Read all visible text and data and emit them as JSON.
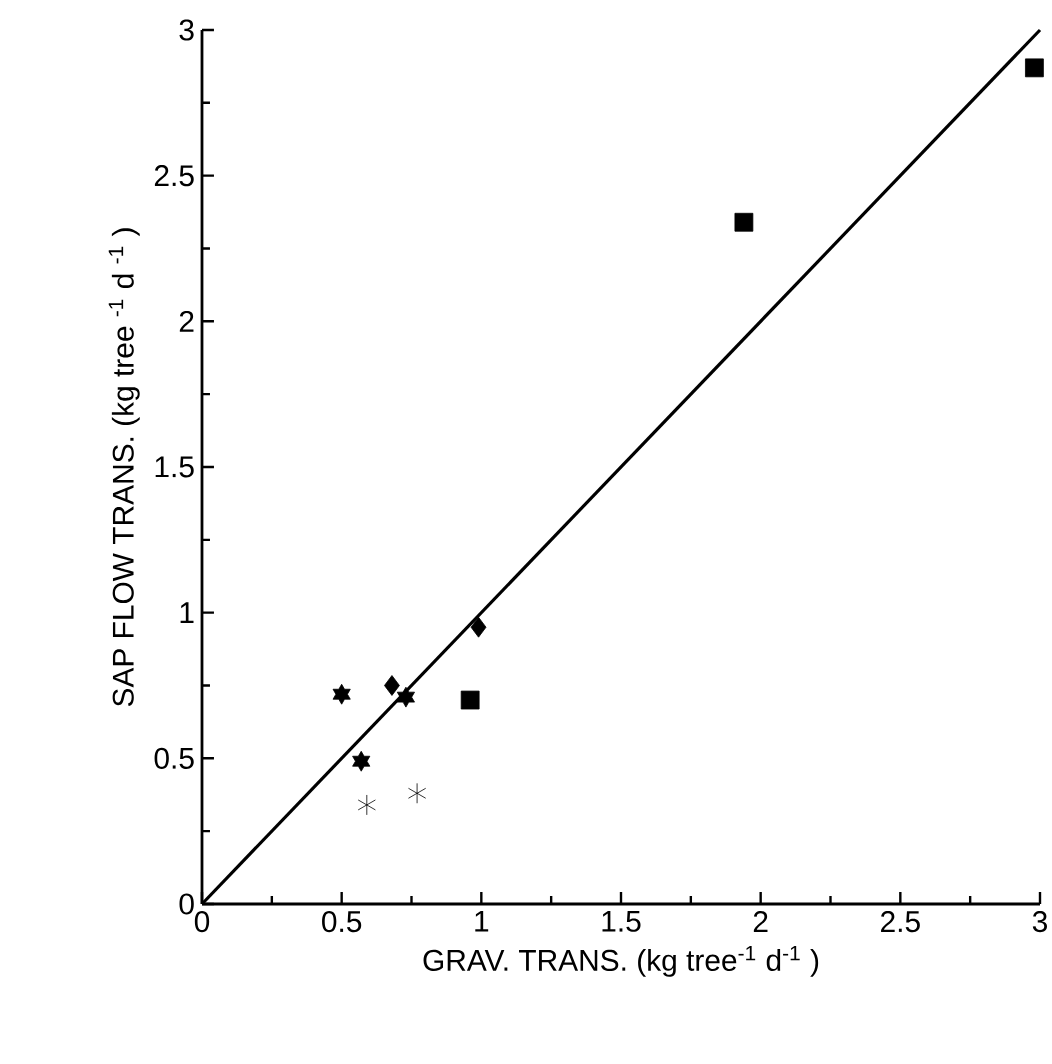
{
  "chart_data": {
    "type": "scatter",
    "xlabel": "GRAV. TRANS. (kg tree$^{-1}$ d$^{-1}$ )",
    "ylabel": "SAP FLOW TRANS. (kg tree $^{-1}$ d $^{-1}$ )",
    "xlim": [
      0,
      3
    ],
    "ylim": [
      0,
      3
    ],
    "xticks": [
      0,
      0.5,
      1,
      1.5,
      2,
      2.5,
      3
    ],
    "yticks": [
      0,
      0.5,
      1,
      1.5,
      2,
      2.5,
      3
    ],
    "grid": false,
    "series": [
      {
        "marker": "square",
        "color": "#000000",
        "x": [
          2.98,
          1.94,
          0.96
        ],
        "values": [
          2.87,
          2.34,
          0.7
        ]
      },
      {
        "marker": "diamond",
        "color": "#000000",
        "x": [
          0.68,
          0.99
        ],
        "values": [
          0.75,
          0.95
        ]
      },
      {
        "color": "#000000",
        "x": [
          0.5,
          0.73,
          0.57
        ],
        "values": [
          0.72,
          0.71,
          0.49
        ]
      },
      {
        "marker": "cross",
        "color": "#000000",
        "x": [
          0.59,
          0.77
        ],
        "values": [
          0.34,
          0.38
        ]
      },
      {
        "type": "line",
        "marker": "none",
        "line_style": "solid",
        "color": "#000000",
        "x": [
          0,
          3
        ],
        "values": [
          0,
          3
        ]
      }
    ]
  }
}
